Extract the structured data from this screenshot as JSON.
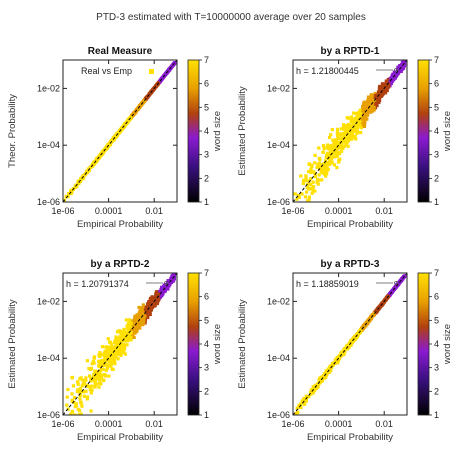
{
  "figure_title": "PTD-3 estimated with T=10000000 average over 20 samples",
  "colors": {
    "yellow": "#ffe000",
    "orange": "#e8a000",
    "brown": "#b04010",
    "purple": "#8a1ad0",
    "deep_purple": "#3a1080",
    "black": "#000000",
    "frame": "#222222"
  },
  "chart_data": [
    {
      "type": "scatter",
      "title": "Real Measure",
      "xlabel": "Empirical Probability",
      "ylabel": "Theor. Probability",
      "log_x": true,
      "log_y": true,
      "xlim": [
        1e-06,
        0.1
      ],
      "ylim": [
        1e-06,
        0.1
      ],
      "x_ticks": [
        "1e-06",
        "0.0001",
        "0.01"
      ],
      "y_ticks": [
        "1e-06",
        "1e-04",
        "1e-02"
      ],
      "legend": "Real vs Emp",
      "annotation": "",
      "spread_decades": 0.06,
      "colorbar": {
        "label": "word size",
        "ticks": [
          "1",
          "2",
          "3",
          "4",
          "5",
          "6",
          "7"
        ],
        "range": [
          1,
          7
        ]
      },
      "reference_line": "y = x"
    },
    {
      "type": "scatter",
      "title": "by a RPTD-1",
      "xlabel": "Empirical Probability",
      "ylabel": "Estimated Probability",
      "log_x": true,
      "log_y": true,
      "xlim": [
        1e-06,
        0.1
      ],
      "ylim": [
        1e-06,
        0.1
      ],
      "x_ticks": [
        "1e-06",
        "0.0001",
        "0.01"
      ],
      "y_ticks": [
        "1e-06",
        "1e-04",
        "1e-02"
      ],
      "legend": "",
      "annotation": "h = 1.21800445",
      "spread_decades": 0.75,
      "colorbar": {
        "label": "word size",
        "ticks": [
          "1",
          "2",
          "3",
          "4",
          "5",
          "6",
          "7"
        ],
        "range": [
          1,
          7
        ]
      },
      "reference_line": "y = x"
    },
    {
      "type": "scatter",
      "title": "by a RPTD-2",
      "xlabel": "Empirical Probability",
      "ylabel": "Estimated Probability",
      "log_x": true,
      "log_y": true,
      "xlim": [
        1e-06,
        0.1
      ],
      "ylim": [
        1e-06,
        0.1
      ],
      "x_ticks": [
        "1e-06",
        "0.0001",
        "0.01"
      ],
      "y_ticks": [
        "1e-06",
        "1e-04",
        "1e-02"
      ],
      "legend": "",
      "annotation": "h = 1.20791374",
      "spread_decades": 0.85,
      "colorbar": {
        "label": "word size",
        "ticks": [
          "1",
          "2",
          "3",
          "4",
          "5",
          "6",
          "7"
        ],
        "range": [
          1,
          7
        ]
      },
      "reference_line": "y = x"
    },
    {
      "type": "scatter",
      "title": "by a RPTD-3",
      "xlabel": "Empirical Probability",
      "ylabel": "Estimated Probability",
      "log_x": true,
      "log_y": true,
      "xlim": [
        1e-06,
        0.1
      ],
      "ylim": [
        1e-06,
        0.1
      ],
      "x_ticks": [
        "1e-06",
        "0.0001",
        "0.01"
      ],
      "y_ticks": [
        "1e-06",
        "1e-04",
        "1e-02"
      ],
      "legend": "",
      "annotation": "h = 1.18859019",
      "spread_decades": 0.12,
      "colorbar": {
        "label": "word size",
        "ticks": [
          "1",
          "2",
          "3",
          "4",
          "5",
          "6",
          "7"
        ],
        "range": [
          1,
          7
        ]
      },
      "reference_line": "y = x"
    }
  ]
}
